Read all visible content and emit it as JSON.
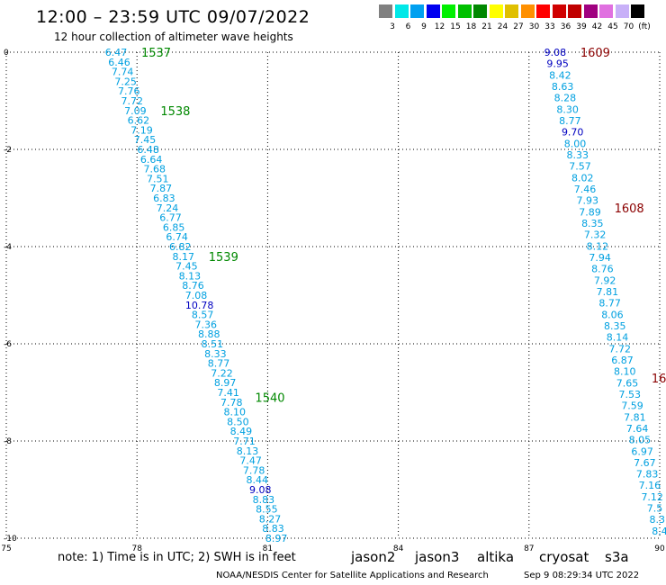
{
  "header": {
    "title": "12:00 – 23:59 UTC 09/07/2022",
    "subtitle": "12 hour collection of altimeter wave heights"
  },
  "scale": {
    "colors": [
      "#808080",
      "#00e8e8",
      "#00a0f0",
      "#0000f0",
      "#00f000",
      "#00c000",
      "#008800",
      "#ffff00",
      "#e0c000",
      "#ff9000",
      "#ff0000",
      "#d00000",
      "#c00000",
      "#a00080",
      "#e070e0",
      "#c8b0f8",
      "#000000"
    ],
    "labels": [
      "3",
      "6",
      "9",
      "12",
      "15",
      "18",
      "21",
      "24",
      "27",
      "30",
      "33",
      "36",
      "39",
      "42",
      "45",
      "70",
      "(ft)"
    ]
  },
  "axes": {
    "x_ticks": [
      "75",
      "78",
      "81",
      "84",
      "87",
      "90"
    ],
    "y_ticks": [
      "0",
      "-2",
      "-4",
      "-6",
      "-8",
      "-10"
    ]
  },
  "tracks": [
    {
      "name": "left-track",
      "lon_start": 77.52,
      "lat_start": 0.0,
      "lon_end": 81.2,
      "lat_end": -10.0,
      "values": [
        "6.47",
        "6.46",
        "7.74",
        "7.25",
        "7.76",
        "7.72",
        "7.09",
        "6.62",
        "7.19",
        "7.45",
        "6.48",
        "6.64",
        "7.68",
        "7.51",
        "7.87",
        "6.83",
        "7.24",
        "6.77",
        "6.85",
        "6.74",
        "6.82",
        "8.17",
        "7.45",
        "8.13",
        "8.76",
        "7.08",
        "10.78",
        "8.57",
        "7.36",
        "8.88",
        "8.51",
        "8.33",
        "8.77",
        "7.22",
        "8.97",
        "7.41",
        "7.78",
        "8.10",
        "8.50",
        "8.49",
        "7.71",
        "8.13",
        "7.47",
        "7.78",
        "8.44",
        "9.08",
        "8.83",
        "8.55",
        "8.27",
        "8.83",
        "8.97"
      ],
      "colors": {
        "10.78": "#0000c0",
        "9.08": "#0000c0"
      },
      "time_labels": [
        {
          "text": "1537",
          "lat": 0.0
        },
        {
          "text": "1538",
          "lat": -1.2
        },
        {
          "text": "1539",
          "lat": -4.2
        },
        {
          "text": "1540",
          "lat": -7.1
        }
      ]
    },
    {
      "name": "right-track",
      "lon_start": 87.6,
      "lat_start": 0.0,
      "lon_end": 90.0,
      "lat_end": -9.85,
      "values": [
        "9.08",
        "9.95",
        "8.42",
        "8.63",
        "8.28",
        "8.30",
        "8.77",
        "9.70",
        "8.00",
        "8.33",
        "7.57",
        "8.02",
        "7.46",
        "7.93",
        "7.89",
        "8.35",
        "7.32",
        "8.12",
        "7.94",
        "8.76",
        "7.92",
        "7.81",
        "8.77",
        "8.06",
        "8.35",
        "8.14",
        "7.72",
        "6.87",
        "8.10",
        "7.65",
        "7.53",
        "7.59",
        "7.81",
        "7.64",
        "8.05",
        "6.97",
        "7.67",
        "7.83",
        "7.16",
        "7.12",
        "7.5",
        "8.3",
        "8.4"
      ],
      "colors": {
        "9.08": "#0000c0",
        "9.95": "#0000c0",
        "9.70": "#0000c0"
      },
      "time_labels": [
        {
          "text": "1609",
          "lat": 0.0
        },
        {
          "text": "1608",
          "lat": -3.2
        },
        {
          "text": "16",
          "lat": -6.7
        }
      ]
    }
  ],
  "footer": {
    "note": "note:  1) Time is in UTC;  2) SWH is in feet",
    "satellites": [
      {
        "name": "jason2",
        "color": "#0000d0"
      },
      {
        "name": "jason3",
        "color": "#008800"
      },
      {
        "name": "altika",
        "color": "#ff9000"
      },
      {
        "name": "cryosat",
        "color": "#d00000"
      },
      {
        "name": "s3a",
        "color": "#900000"
      }
    ],
    "credit": "NOAA/NESDIS Center for Satellite Applications and Research",
    "timestamp": "Sep  9 08:29:34 UTC 2022"
  },
  "colors": {
    "value_default": "#00a0e0",
    "left_time": "#008800",
    "right_time": "#8b0000",
    "grid": "#000000"
  }
}
